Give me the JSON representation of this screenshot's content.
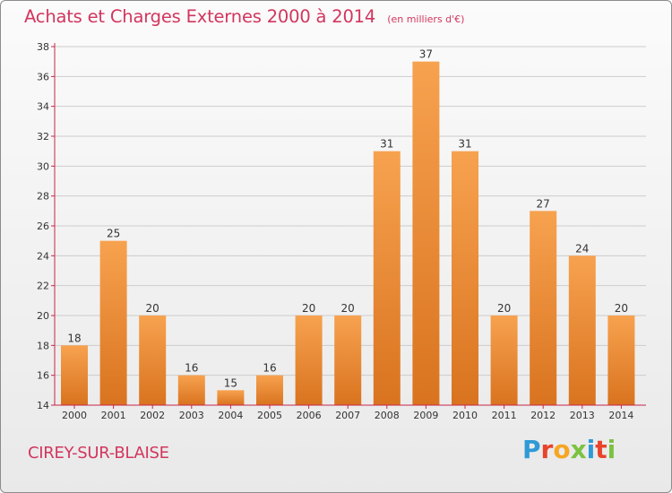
{
  "header": {
    "title": "Achats et Charges Externes 2000 à 2014",
    "subtitle": "(en milliers d'€)"
  },
  "footer": {
    "place": "CIREY-SUR-BLAISE",
    "logo": "Proxiti",
    "logo_colors": [
      "#2f9ad6",
      "#e8442c",
      "#f5a623",
      "#7cc242",
      "#2f9ad6",
      "#e8442c",
      "#7cc242"
    ]
  },
  "colors": {
    "bar_light": "#f7a24f",
    "bar_dark": "#d9731f",
    "axis": "#c8254a",
    "grid": "#cccccc"
  },
  "chart_data": {
    "type": "bar",
    "categories": [
      "2000",
      "2001",
      "2002",
      "2003",
      "2004",
      "2005",
      "2006",
      "2007",
      "2008",
      "2009",
      "2010",
      "2011",
      "2012",
      "2013",
      "2014"
    ],
    "values": [
      18,
      25,
      20,
      16,
      15,
      16,
      20,
      20,
      31,
      37,
      31,
      20,
      27,
      24,
      20
    ],
    "yticks": [
      14,
      16,
      18,
      20,
      22,
      24,
      26,
      28,
      30,
      32,
      34,
      36,
      38
    ],
    "ylim": [
      14,
      38
    ],
    "grid": true,
    "data_labels": true
  }
}
